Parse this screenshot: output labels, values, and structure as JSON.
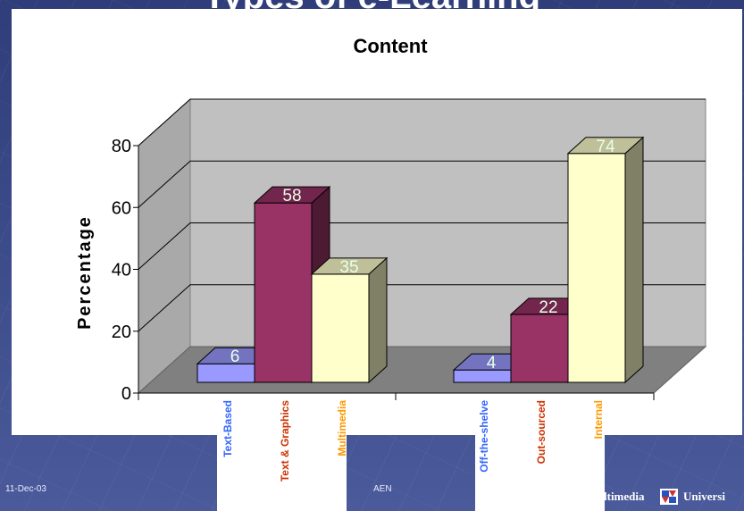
{
  "slide": {
    "top_title_fragment": "Types of e-Learning",
    "footer_date": "11-Dec-03",
    "footer_author": "AEN",
    "footer_brand_left": "ltimedia",
    "footer_brand_right": "Universi"
  },
  "colors": {
    "blue": "#9999ff",
    "maroon": "#993366",
    "cream": "#ffffcc",
    "label_blue": "#3366ff",
    "label_orange": "#cc3300",
    "label_amber": "#ff9900"
  },
  "chart_data": {
    "type": "bar",
    "title": "Content",
    "ylabel": "Percentage",
    "xlabel": "",
    "ylim": [
      0,
      80
    ],
    "yticks": [
      0,
      20,
      40,
      60,
      80
    ],
    "grid": true,
    "groups": [
      {
        "bars": [
          {
            "label": "Text-Based",
            "value": 6,
            "color_key": "blue",
            "label_color_key": "label_blue"
          },
          {
            "label": "Text & Graphics",
            "value": 58,
            "color_key": "maroon",
            "label_color_key": "label_orange"
          },
          {
            "label": "Multimedia",
            "value": 35,
            "color_key": "cream",
            "label_color_key": "label_amber"
          }
        ]
      },
      {
        "bars": [
          {
            "label": "Off-the-shelve",
            "value": 4,
            "color_key": "blue",
            "label_color_key": "label_blue"
          },
          {
            "label": "Out-sourced",
            "value": 22,
            "color_key": "maroon",
            "label_color_key": "label_orange"
          },
          {
            "label": "Internal",
            "value": 74,
            "color_key": "cream",
            "label_color_key": "label_amber"
          }
        ]
      }
    ]
  }
}
